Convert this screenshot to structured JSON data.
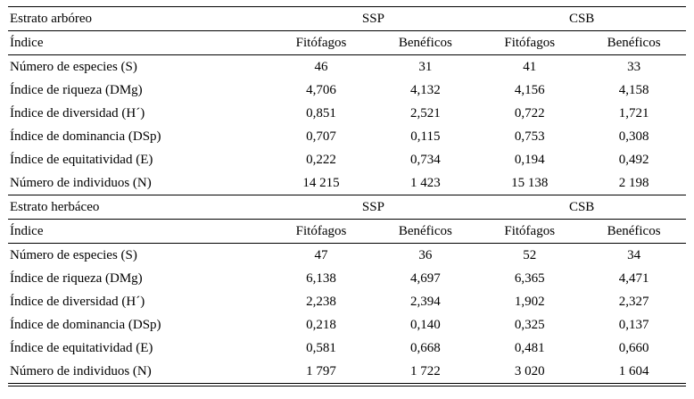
{
  "table": {
    "sections": [
      {
        "title": "Estrato arbóreo",
        "group_headers": [
          "SSP",
          "CSB"
        ],
        "col_headers": [
          "Índice",
          "Fitófagos",
          "Benéficos",
          "Fitófagos",
          "Benéficos"
        ],
        "rows": [
          {
            "label": "Número de especies (S)",
            "values": [
              "46",
              "31",
              "41",
              "33"
            ]
          },
          {
            "label": "Índice de riqueza (DMg)",
            "values": [
              "4,706",
              "4,132",
              "4,156",
              "4,158"
            ]
          },
          {
            "label": "Índice de diversidad (H´)",
            "values": [
              "0,851",
              "2,521",
              "0,722",
              "1,721"
            ]
          },
          {
            "label": "Índice de dominancia (DSp)",
            "values": [
              "0,707",
              "0,115",
              "0,753",
              "0,308"
            ]
          },
          {
            "label": "Índice de equitatividad (E)",
            "values": [
              "0,222",
              "0,734",
              "0,194",
              "0,492"
            ]
          },
          {
            "label": "Número de individuos (N)",
            "values": [
              "14 215",
              "1 423",
              "15 138",
              "2 198"
            ]
          }
        ]
      },
      {
        "title": "Estrato herbáceo",
        "group_headers": [
          "SSP",
          "CSB"
        ],
        "col_headers": [
          "Índice",
          "Fitófagos",
          "Benéficos",
          "Fitófagos",
          "Benéficos"
        ],
        "rows": [
          {
            "label": "Número de especies (S)",
            "values": [
              "47",
              "36",
              "52",
              "34"
            ]
          },
          {
            "label": "Índice de riqueza (DMg)",
            "values": [
              "6,138",
              "4,697",
              "6,365",
              "4,471"
            ]
          },
          {
            "label": "Índice de diversidad (H´)",
            "values": [
              "2,238",
              "2,394",
              "1,902",
              "2,327"
            ]
          },
          {
            "label": "Índice de dominancia (DSp)",
            "values": [
              "0,218",
              "0,140",
              "0,325",
              "0,137"
            ]
          },
          {
            "label": "Índice de equitatividad (E)",
            "values": [
              "0,581",
              "0,668",
              "0,481",
              "0,660"
            ]
          },
          {
            "label": "Número de individuos (N)",
            "values": [
              "1 797",
              "1 722",
              "3 020",
              "1 604"
            ]
          }
        ]
      }
    ]
  }
}
